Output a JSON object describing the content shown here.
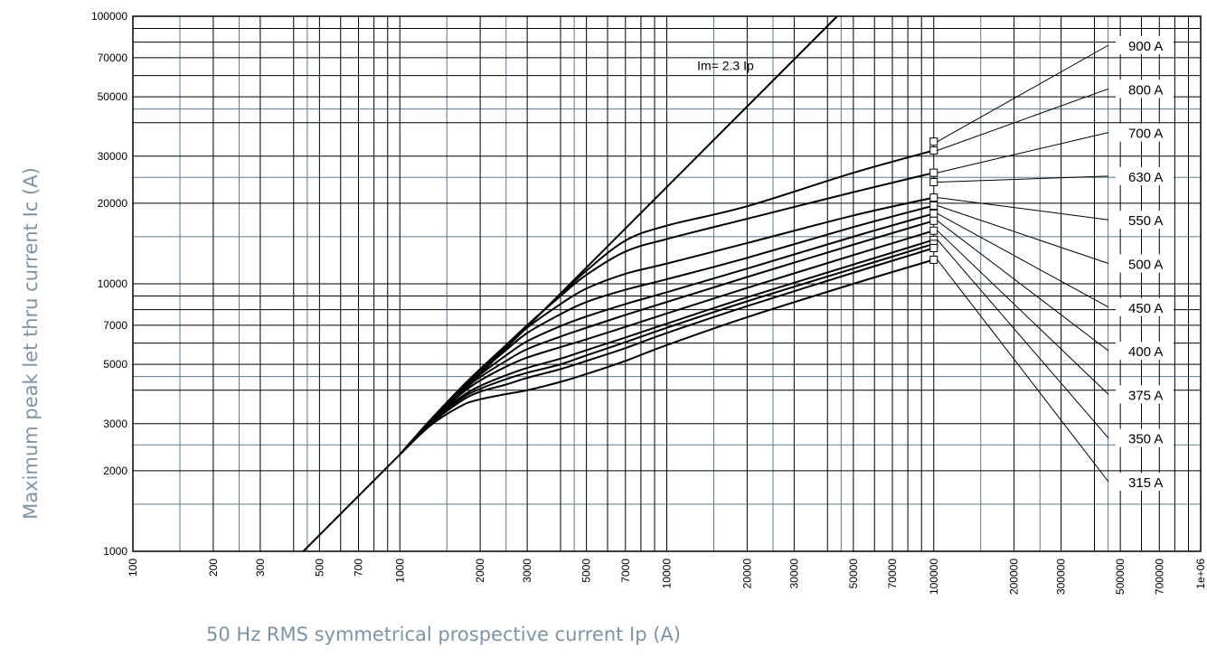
{
  "chart_data": {
    "type": "line",
    "xlabel": "50 Hz RMS symmetrical prospective current Ip (A)",
    "ylabel": "Maximum peak let thru current Ic (A)",
    "xscale": "log",
    "yscale": "log",
    "xlim": [
      100,
      1000000
    ],
    "ylim": [
      1000,
      100000
    ],
    "grid": true,
    "x_tick_labels": [
      "100",
      "200",
      "300",
      "500",
      "700",
      "1000",
      "2000",
      "3000",
      "5000",
      "7000",
      "10000",
      "20000",
      "30000",
      "50000",
      "70000",
      "100000",
      "200000",
      "300000",
      "500000",
      "700000",
      "1e+06"
    ],
    "y_tick_labels": [
      "100000",
      "70000",
      "50000",
      "30000",
      "20000",
      "10000",
      "7000",
      "5000",
      "3000",
      "2000",
      "1000"
    ],
    "reference_line": {
      "label": "Im= 2.3 Ip",
      "slope": 2.3
    },
    "series": [
      {
        "name": "315 A",
        "x": [
          1000,
          1300,
          1700,
          2000,
          2500,
          3000,
          4000,
          5000,
          7000,
          10000,
          20000,
          50000,
          100000
        ],
        "y": [
          2300,
          2950,
          3500,
          3700,
          3870,
          4000,
          4300,
          4600,
          5150,
          5900,
          7500,
          10000,
          12300
        ]
      },
      {
        "name": "350 A",
        "x": [
          1000,
          1300,
          1700,
          2000,
          2500,
          3000,
          4000,
          5000,
          7000,
          10000,
          20000,
          50000,
          100000
        ],
        "y": [
          2300,
          2980,
          3650,
          3950,
          4200,
          4450,
          4800,
          5150,
          5750,
          6550,
          8250,
          11000,
          13600
        ]
      },
      {
        "name": "375 A",
        "x": [
          1000,
          1300,
          1700,
          2000,
          2500,
          3000,
          4000,
          5000,
          7000,
          10000,
          20000,
          50000,
          100000
        ],
        "y": [
          2300,
          3000,
          3720,
          4050,
          4400,
          4650,
          5000,
          5400,
          6050,
          6850,
          8600,
          11400,
          14100
        ]
      },
      {
        "name": "400 A",
        "x": [
          1000,
          1300,
          1700,
          2000,
          2500,
          3000,
          4000,
          5000,
          7000,
          10000,
          20000,
          50000,
          100000
        ],
        "y": [
          2300,
          3020,
          3780,
          4150,
          4550,
          4850,
          5250,
          5650,
          6300,
          7100,
          8900,
          11800,
          14600
        ]
      },
      {
        "name": "450 A",
        "x": [
          1000,
          1300,
          1700,
          2000,
          2500,
          3000,
          4000,
          5000,
          7000,
          10000,
          20000,
          50000,
          100000
        ],
        "y": [
          2300,
          3050,
          3880,
          4350,
          4900,
          5300,
          5800,
          6200,
          6900,
          7750,
          9650,
          12800,
          15800
        ]
      },
      {
        "name": "500 A",
        "x": [
          1000,
          1300,
          1700,
          2000,
          2500,
          3000,
          4000,
          5000,
          7000,
          10000,
          20000,
          50000,
          100000
        ],
        "y": [
          2300,
          3070,
          3950,
          4480,
          5150,
          5700,
          6350,
          6850,
          7650,
          8550,
          10600,
          14000,
          17200
        ]
      },
      {
        "name": "550 A",
        "x": [
          1000,
          1300,
          1700,
          2000,
          2500,
          3000,
          4000,
          5000,
          7000,
          10000,
          20000,
          50000,
          100000
        ],
        "y": [
          2300,
          3080,
          4000,
          4580,
          5400,
          6100,
          6950,
          7550,
          8400,
          9300,
          11400,
          15000,
          18300
        ]
      },
      {
        "name": "630 A",
        "x": [
          1000,
          1300,
          1700,
          2000,
          2500,
          3000,
          4000,
          5000,
          7000,
          10000,
          20000,
          50000,
          100000
        ],
        "y": [
          2300,
          3090,
          4050,
          4680,
          5650,
          6550,
          7700,
          8550,
          9500,
          10400,
          12500,
          16300,
          19600
        ]
      },
      {
        "name": "700 A",
        "x": [
          1000,
          1300,
          1700,
          2000,
          2500,
          3000,
          4000,
          5000,
          7000,
          10000,
          20000,
          50000,
          100000
        ],
        "y": [
          2300,
          3090,
          4080,
          4750,
          5800,
          6850,
          8400,
          9600,
          10900,
          11900,
          14200,
          18000,
          21000
        ]
      },
      {
        "name": "800 A",
        "x": [
          1000,
          1300,
          1700,
          2000,
          2500,
          3000,
          4000,
          5000,
          7000,
          10000,
          20000,
          50000,
          100000
        ],
        "y": [
          2300,
          3090,
          4100,
          4800,
          5900,
          7000,
          9000,
          10800,
          13200,
          14700,
          17500,
          22000,
          26000
        ]
      },
      {
        "name": "900 A",
        "x": [
          1000,
          1300,
          1700,
          2000,
          2500,
          3000,
          4000,
          5000,
          7000,
          10000,
          20000,
          50000,
          100000
        ],
        "y": [
          2300,
          3090,
          4100,
          4800,
          5900,
          7000,
          9100,
          11200,
          14500,
          16500,
          19500,
          26000,
          31500
        ]
      }
    ],
    "end_markers_x": 100000,
    "label_pointers": [
      {
        "label": "900 A",
        "from_y": 34000
      },
      {
        "label": "800 A",
        "from_y": 31500
      },
      {
        "label": "700 A",
        "from_y": 26000
      },
      {
        "label": "630 A",
        "from_y": 24000
      },
      {
        "label": "550 A",
        "from_y": 21000
      },
      {
        "label": "500 A",
        "from_y": 19600
      },
      {
        "label": "450 A",
        "from_y": 18300
      },
      {
        "label": "400 A",
        "from_y": 17200
      },
      {
        "label": "375 A",
        "from_y": 15800
      },
      {
        "label": "350 A",
        "from_y": 14600
      },
      {
        "label": "315 A",
        "from_y": 12300
      }
    ],
    "extra_points": [
      {
        "label_ref": "14100",
        "y": 14100
      },
      {
        "label_ref": "13600",
        "y": 13600
      }
    ],
    "colors": {
      "major_grid": "#000000",
      "minor_grid": "#5d7b87",
      "curve": "#000000",
      "axis_title": "#7d95a3"
    }
  }
}
